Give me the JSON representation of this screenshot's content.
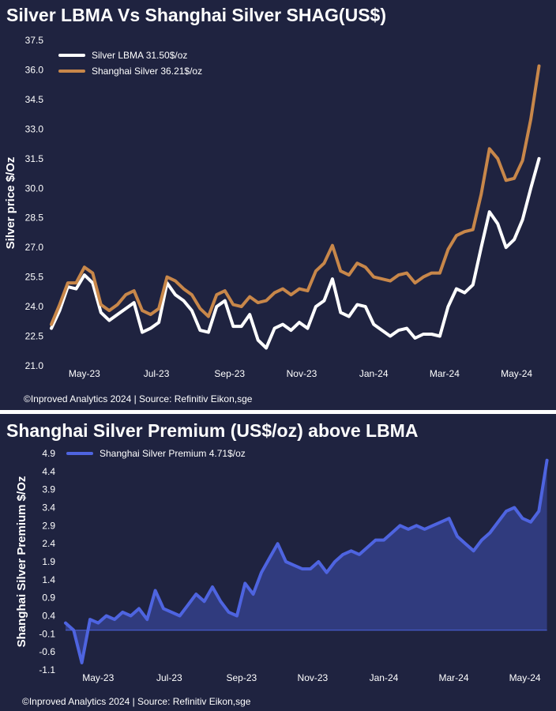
{
  "chart_data": [
    {
      "type": "line",
      "title": "Silver LBMA Vs Shanghai Silver SHAG(US$)",
      "ylabel": "Silver price $/Oz",
      "ylim": [
        21.0,
        37.5
      ],
      "yticks": [
        "21.0",
        "22.5",
        "24.0",
        "25.5",
        "27.0",
        "28.5",
        "30.0",
        "31.5",
        "33.0",
        "34.5",
        "36.0",
        "37.5"
      ],
      "xticks": [
        "May-23",
        "Jul-23",
        "Sep-23",
        "Nov-23",
        "Jan-24",
        "Mar-24",
        "May-24"
      ],
      "x": [
        "2023-04-03",
        "2023-04-10",
        "2023-04-17",
        "2023-04-24",
        "2023-05-01",
        "2023-05-08",
        "2023-05-15",
        "2023-05-22",
        "2023-05-29",
        "2023-06-05",
        "2023-06-12",
        "2023-06-19",
        "2023-06-26",
        "2023-07-03",
        "2023-07-10",
        "2023-07-17",
        "2023-07-24",
        "2023-07-31",
        "2023-08-07",
        "2023-08-14",
        "2023-08-21",
        "2023-08-28",
        "2023-09-04",
        "2023-09-11",
        "2023-09-18",
        "2023-09-25",
        "2023-10-02",
        "2023-10-09",
        "2023-10-16",
        "2023-10-23",
        "2023-10-30",
        "2023-11-06",
        "2023-11-13",
        "2023-11-20",
        "2023-11-27",
        "2023-12-04",
        "2023-12-11",
        "2023-12-18",
        "2023-12-25",
        "2024-01-01",
        "2024-01-08",
        "2024-01-15",
        "2024-01-22",
        "2024-01-29",
        "2024-02-05",
        "2024-02-12",
        "2024-02-19",
        "2024-02-26",
        "2024-03-04",
        "2024-03-11",
        "2024-03-18",
        "2024-03-25",
        "2024-04-01",
        "2024-04-08",
        "2024-04-15",
        "2024-04-22",
        "2024-04-29",
        "2024-05-06",
        "2024-05-13",
        "2024-05-20"
      ],
      "series": [
        {
          "name": "Silver LBMA 31.50$/oz",
          "color": "#ffffff",
          "values": [
            22.9,
            23.8,
            25.0,
            24.9,
            25.6,
            25.2,
            23.7,
            23.3,
            23.6,
            23.9,
            24.2,
            22.7,
            22.9,
            23.2,
            25.2,
            24.6,
            24.3,
            23.8,
            22.8,
            22.7,
            24.0,
            24.3,
            23.0,
            23.0,
            23.6,
            22.3,
            21.9,
            22.9,
            23.1,
            22.8,
            23.2,
            22.9,
            24.0,
            24.3,
            25.4,
            23.7,
            23.5,
            24.1,
            24.0,
            23.1,
            22.8,
            22.5,
            22.8,
            22.9,
            22.4,
            22.6,
            22.6,
            22.5,
            24.0,
            24.9,
            24.7,
            25.1,
            27.0,
            28.8,
            28.2,
            27.0,
            27.4,
            28.4,
            30.0,
            31.5
          ]
        },
        {
          "name": "Shanghai Silver 36.21$/oz",
          "color": "#c8874a",
          "values": [
            23.1,
            24.1,
            25.2,
            25.2,
            26.0,
            25.7,
            24.1,
            23.8,
            24.1,
            24.6,
            24.8,
            23.8,
            23.6,
            23.9,
            25.5,
            25.3,
            24.9,
            24.6,
            23.9,
            23.5,
            24.6,
            24.8,
            24.1,
            24.0,
            24.5,
            24.2,
            24.3,
            24.7,
            24.9,
            24.6,
            24.9,
            24.8,
            25.8,
            26.2,
            27.1,
            25.8,
            25.6,
            26.2,
            26.0,
            25.5,
            25.4,
            25.3,
            25.6,
            25.7,
            25.2,
            25.5,
            25.7,
            25.7,
            26.9,
            27.6,
            27.8,
            27.9,
            29.7,
            32.0,
            31.5,
            30.4,
            30.5,
            31.4,
            33.5,
            36.2
          ]
        }
      ],
      "legend": "top-left",
      "grid": false,
      "footer": "©Inproved Analytics 2024 | Source: Refinitiv Eikon,sge"
    },
    {
      "type": "area",
      "title": "Shanghai Silver Premium (US$/oz) above LBMA",
      "ylabel": "Shanghai Silver Premium $/Oz",
      "ylim": [
        -1.1,
        4.9
      ],
      "yticks": [
        "-1.1",
        "-0.6",
        "-0.1",
        "0.4",
        "0.9",
        "1.4",
        "1.9",
        "2.4",
        "2.9",
        "3.4",
        "3.9",
        "4.4",
        "4.9"
      ],
      "xticks": [
        "May-23",
        "Jul-23",
        "Sep-23",
        "Nov-23",
        "Jan-24",
        "Mar-24",
        "May-24"
      ],
      "x": [
        "2023-04-03",
        "2023-04-10",
        "2023-04-17",
        "2023-04-24",
        "2023-05-01",
        "2023-05-08",
        "2023-05-15",
        "2023-05-22",
        "2023-05-29",
        "2023-06-05",
        "2023-06-12",
        "2023-06-19",
        "2023-06-26",
        "2023-07-03",
        "2023-07-10",
        "2023-07-17",
        "2023-07-24",
        "2023-07-31",
        "2023-08-07",
        "2023-08-14",
        "2023-08-21",
        "2023-08-28",
        "2023-09-04",
        "2023-09-11",
        "2023-09-18",
        "2023-09-25",
        "2023-10-02",
        "2023-10-09",
        "2023-10-16",
        "2023-10-23",
        "2023-10-30",
        "2023-11-06",
        "2023-11-13",
        "2023-11-20",
        "2023-11-27",
        "2023-12-04",
        "2023-12-11",
        "2023-12-18",
        "2023-12-25",
        "2024-01-01",
        "2024-01-08",
        "2024-01-15",
        "2024-01-22",
        "2024-01-29",
        "2024-02-05",
        "2024-02-12",
        "2024-02-19",
        "2024-02-26",
        "2024-03-04",
        "2024-03-11",
        "2024-03-18",
        "2024-03-25",
        "2024-04-01",
        "2024-04-08",
        "2024-04-15",
        "2024-04-22",
        "2024-04-29",
        "2024-05-06",
        "2024-05-13",
        "2024-05-20"
      ],
      "series": [
        {
          "name": "Shanghai Silver Premium 4.71$/oz",
          "color": "#4e64e0",
          "values": [
            0.2,
            0.0,
            -0.9,
            0.3,
            0.2,
            0.4,
            0.3,
            0.5,
            0.4,
            0.6,
            0.3,
            1.1,
            0.6,
            0.5,
            0.4,
            0.7,
            1.0,
            0.8,
            1.2,
            0.8,
            0.5,
            0.4,
            1.3,
            1.0,
            1.6,
            2.0,
            2.4,
            1.9,
            1.8,
            1.7,
            1.7,
            1.9,
            1.6,
            1.9,
            2.1,
            2.2,
            2.1,
            2.3,
            2.5,
            2.5,
            2.7,
            2.9,
            2.8,
            2.9,
            2.8,
            2.9,
            3.0,
            3.1,
            2.6,
            2.4,
            2.2,
            2.5,
            2.7,
            3.0,
            3.3,
            3.4,
            3.1,
            3.0,
            3.3,
            4.71
          ]
        }
      ],
      "legend": "top-left",
      "grid": false,
      "footer": "©Inproved Analytics 2024 | Source: Refinitiv Eikon,sge"
    }
  ]
}
